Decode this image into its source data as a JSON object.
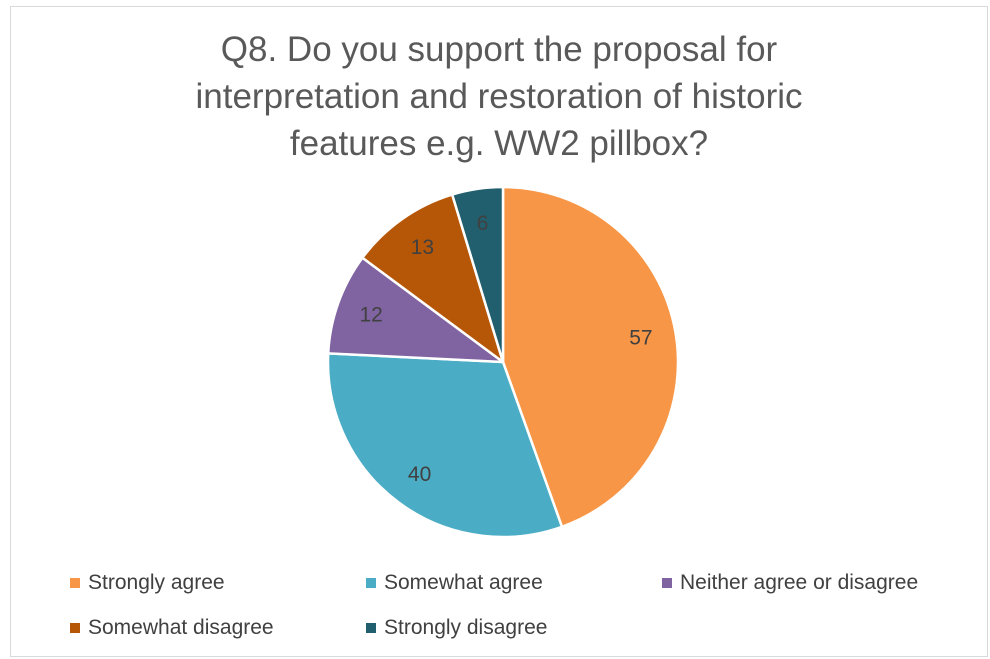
{
  "chart_data": {
    "type": "pie",
    "title": "Q8. Do you support the proposal for interpretation and restoration of historic features e.g. WW2 pillbox?",
    "title_lines": [
      "Q8. Do you support the proposal for",
      "interpretation and restoration of historic",
      "features e.g. WW2 pillbox?"
    ],
    "categories": [
      "Strongly agree",
      "Somewhat agree",
      "Neither agree or disagree",
      "Somewhat disagree",
      "Strongly disagree"
    ],
    "values": [
      57,
      40,
      12,
      13,
      6
    ],
    "colors": [
      "#f79646",
      "#4bacc6",
      "#8064a2",
      "#b65708",
      "#215f6e"
    ],
    "data_labels": [
      "57",
      "40",
      "12",
      "13",
      "6"
    ],
    "legend_position": "bottom"
  }
}
